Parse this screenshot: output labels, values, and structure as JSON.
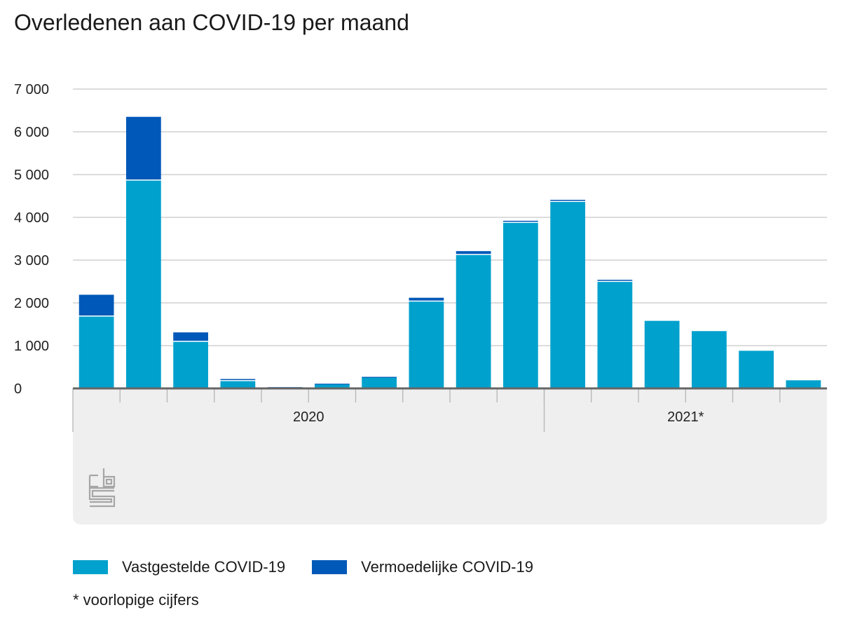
{
  "title": "Overledenen aan COVID-19 per maand",
  "footnote": "* voorlopige cijfers",
  "colors": {
    "vastgesteld": "#00a1cd",
    "vermoedelijk": "#0058b8",
    "grid": "#c8c8c8",
    "axis_band": "#efefef",
    "baseline": "#666666",
    "logo": "#a6a6a6"
  },
  "logo": {
    "icon": "cbs-logo-icon",
    "text": "cbs"
  },
  "legend": [
    {
      "name": "Vastgestelde COVID-19",
      "color": "#00a1cd"
    },
    {
      "name": "Vermoedelijke COVID-19",
      "color": "#0058b8"
    }
  ],
  "chart_data": {
    "type": "bar",
    "stacked": true,
    "ylim": [
      0,
      7000
    ],
    "yticks": [
      0,
      1000,
      2000,
      3000,
      4000,
      5000,
      6000,
      7000
    ],
    "ytick_labels": [
      "0",
      "1 000",
      "2 000",
      "3 000",
      "4 000",
      "5 000",
      "6 000",
      "7 000"
    ],
    "grid": true,
    "legend_position": "bottom-left",
    "year_groups": [
      {
        "label": "2020",
        "count": 10
      },
      {
        "label": "2021*",
        "count": 6
      }
    ],
    "series": [
      {
        "name": "Vastgestelde COVID-19",
        "color": "#00a1cd",
        "values": [
          1680,
          4860,
          1090,
          170,
          20,
          100,
          260,
          2030,
          3120,
          3870,
          4360,
          2490,
          1580,
          1340,
          880,
          190
        ]
      },
      {
        "name": "Vermoedelijke COVID-19",
        "color": "#0058b8",
        "values": [
          510,
          1490,
          220,
          50,
          10,
          10,
          10,
          90,
          90,
          50,
          50,
          50,
          0,
          0,
          0,
          0
        ]
      }
    ]
  }
}
